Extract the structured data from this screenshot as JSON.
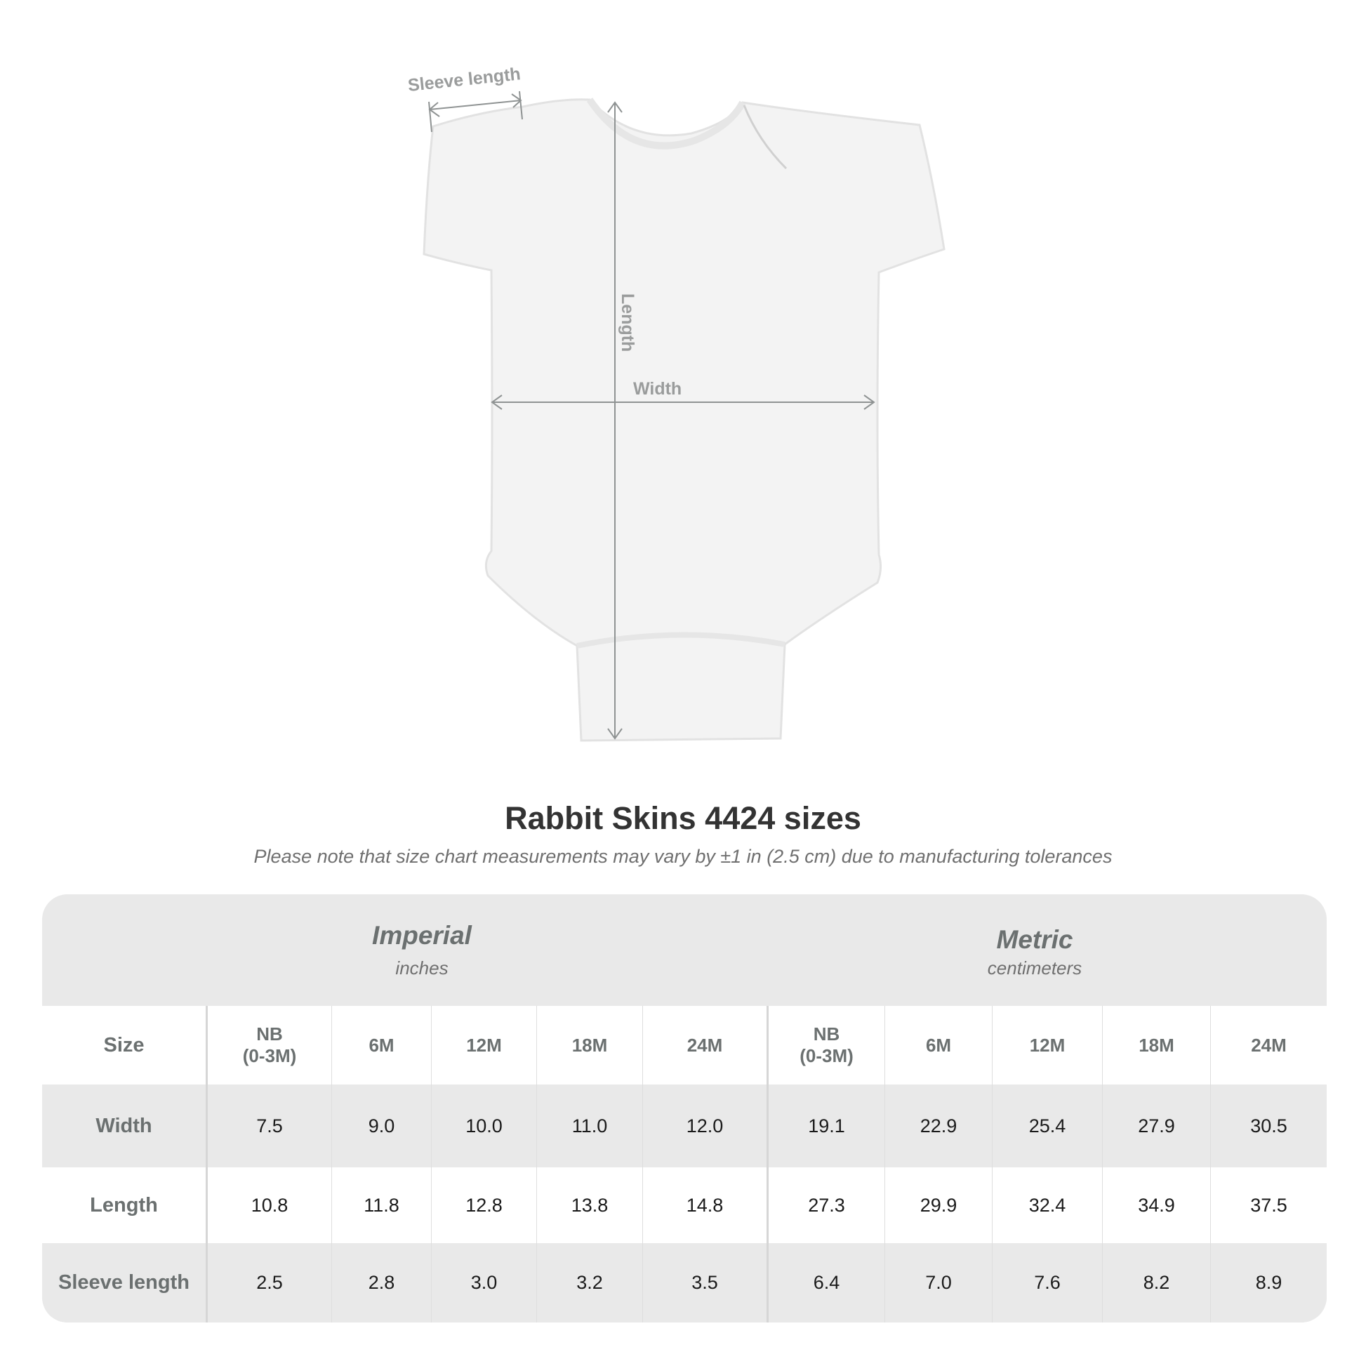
{
  "diagram": {
    "sleeve_label": "Sleeve length",
    "length_label": "Length",
    "width_label": "Width"
  },
  "title": "Rabbit Skins 4424 sizes",
  "subtitle": "Please note that size chart measurements may vary by ±1 in (2.5 cm) due to manufacturing tolerances",
  "table": {
    "imperial": {
      "name": "Imperial",
      "unit": "inches"
    },
    "metric": {
      "name": "Metric",
      "unit": "centimeters"
    },
    "size_label": "Size",
    "sizes": [
      "NB\n(0-3M)",
      "6M",
      "12M",
      "18M",
      "24M"
    ],
    "rows": [
      {
        "label": "Width",
        "imperial": [
          "7.5",
          "9.0",
          "10.0",
          "11.0",
          "12.0"
        ],
        "metric": [
          "19.1",
          "22.9",
          "25.4",
          "27.9",
          "30.5"
        ]
      },
      {
        "label": "Length",
        "imperial": [
          "10.8",
          "11.8",
          "12.8",
          "13.8",
          "14.8"
        ],
        "metric": [
          "27.3",
          "29.9",
          "32.4",
          "34.9",
          "37.5"
        ]
      },
      {
        "label": "Sleeve length",
        "imperial": [
          "2.5",
          "2.8",
          "3.0",
          "3.2",
          "3.5"
        ],
        "metric": [
          "6.4",
          "7.0",
          "7.6",
          "8.2",
          "8.9"
        ]
      }
    ]
  },
  "colors": {
    "header_bg": "#e9e9e9",
    "label_gray": "#6b7070",
    "title": "#333333"
  }
}
